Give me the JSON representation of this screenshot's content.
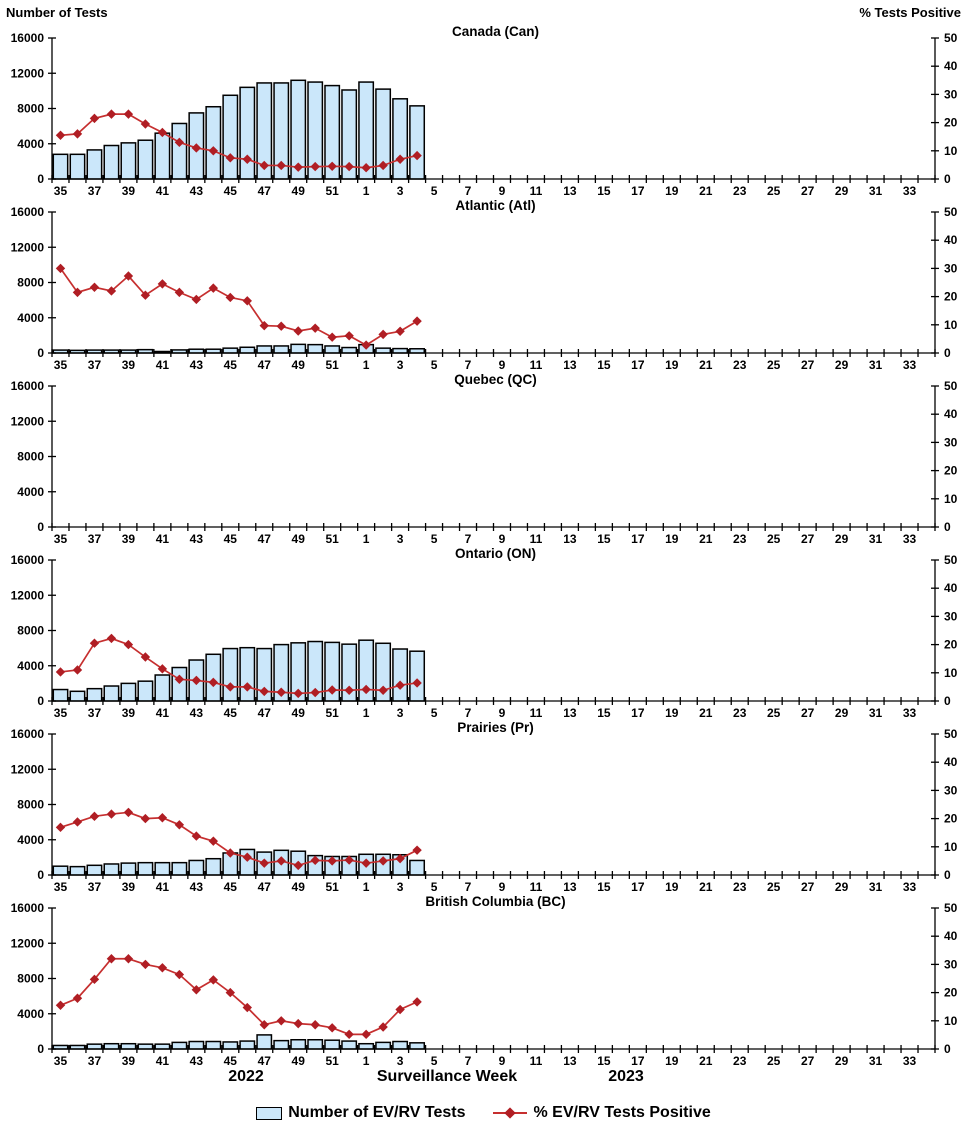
{
  "page": {
    "left_axis_title": "Number of Tests",
    "right_axis_title": "% Tests Positive",
    "x_axis": {
      "year_left": "2022",
      "label": "Surveillance Week",
      "year_right": "2023"
    },
    "legend": {
      "bar_label": "Number of EV/RV Tests",
      "line_label": "% EV/RV Tests Positive"
    }
  },
  "chart_data": {
    "type": "bar+line",
    "description": "Six stacked panels: EV/RV laboratory tests (bars, left axis) and percent positive (red diamond line, right axis) by surveillance week 2022-W35 to 2023-W34; data plotted through 2023-W04",
    "x_weeks": [
      "35",
      "36",
      "37",
      "38",
      "39",
      "40",
      "41",
      "42",
      "43",
      "44",
      "45",
      "46",
      "47",
      "48",
      "49",
      "50",
      "51",
      "52",
      "1",
      "2",
      "3",
      "4",
      "5",
      "6",
      "7",
      "8",
      "9",
      "10",
      "11",
      "12",
      "13",
      "14",
      "15",
      "16",
      "17",
      "18",
      "19",
      "20",
      "21",
      "22",
      "23",
      "24",
      "25",
      "26",
      "27",
      "28",
      "29",
      "30",
      "31",
      "32",
      "33",
      "34"
    ],
    "left_axis": {
      "title": "Number of Tests",
      "min": 0,
      "max": 16000,
      "step": 4000,
      "tick_labels": [
        "0",
        "4000",
        "8000",
        "12000",
        "16000"
      ]
    },
    "right_axis": {
      "title": "% Tests Positive",
      "min": 0,
      "max": 50,
      "step": 10,
      "tick_labels": [
        "0",
        "10",
        "20",
        "30",
        "40",
        "50"
      ]
    },
    "colors": {
      "bar_fill": "#cbe7fa",
      "bar_stroke": "#000000",
      "line": "#c62f2f",
      "marker": "#b01e24"
    },
    "panels": [
      {
        "id": "can",
        "title": "Canada (Can)",
        "bars": [
          2800,
          2800,
          3300,
          3800,
          4100,
          4400,
          5200,
          6300,
          7500,
          8200,
          9500,
          10400,
          10900,
          10900,
          11200,
          11000,
          10600,
          10100,
          11000,
          10200,
          9100,
          8300
        ],
        "pct_positive": [
          15.5,
          16,
          21.5,
          23,
          23,
          19.5,
          16.5,
          13,
          11,
          10,
          7.5,
          7,
          4.8,
          4.8,
          4.2,
          4.4,
          4.5,
          4.4,
          4,
          4.8,
          7,
          8.3
        ]
      },
      {
        "id": "atl",
        "title": "Atlantic (Atl)",
        "bars": [
          330,
          300,
          330,
          330,
          330,
          380,
          170,
          350,
          430,
          430,
          550,
          650,
          800,
          800,
          980,
          950,
          800,
          620,
          950,
          550,
          500,
          480
        ],
        "pct_positive": [
          30,
          21.5,
          23.3,
          22,
          27.3,
          20.5,
          24.5,
          21.5,
          19,
          23,
          19.7,
          18.5,
          9.7,
          9.5,
          7.8,
          8.8,
          5.6,
          6.1,
          2.8,
          6.6,
          7.7,
          11.3
        ]
      },
      {
        "id": "qc",
        "title": "Quebec (QC)",
        "bars": [],
        "pct_positive": []
      },
      {
        "id": "on",
        "title": "Ontario (ON)",
        "bars": [
          1300,
          1100,
          1400,
          1700,
          2000,
          2250,
          2950,
          3800,
          4650,
          5300,
          5950,
          6050,
          5950,
          6400,
          6600,
          6750,
          6650,
          6450,
          6900,
          6550,
          5900,
          5650
        ],
        "pct_positive": [
          10.3,
          11,
          20.5,
          22.2,
          20,
          15.6,
          11.4,
          7.7,
          7.3,
          6.6,
          5,
          5,
          3.4,
          3.1,
          2.7,
          3,
          3.9,
          3.8,
          4.1,
          3.8,
          5.6,
          6.4
        ]
      },
      {
        "id": "pr",
        "title": "Prairies (Pr)",
        "bars": [
          1000,
          950,
          1100,
          1250,
          1350,
          1400,
          1400,
          1400,
          1650,
          1850,
          2500,
          2900,
          2600,
          2800,
          2700,
          2200,
          2100,
          2100,
          2350,
          2350,
          2300,
          1650
        ],
        "pct_positive": [
          16.9,
          18.8,
          20.8,
          21.6,
          22.2,
          20,
          20.3,
          17.8,
          13.8,
          12,
          7.8,
          6.3,
          4.2,
          5,
          3.4,
          5.2,
          5,
          5.3,
          4.2,
          5,
          5.8,
          8.8
        ]
      },
      {
        "id": "bc",
        "title": "British Columbia (BC)",
        "bars": [
          400,
          400,
          550,
          600,
          600,
          550,
          550,
          750,
          850,
          850,
          800,
          900,
          1600,
          950,
          1050,
          1050,
          1000,
          900,
          600,
          750,
          850,
          700
        ],
        "pct_positive": [
          15.5,
          18,
          24.7,
          32,
          32,
          30,
          28.8,
          26.4,
          21,
          24.5,
          20,
          14.7,
          8.6,
          10,
          9,
          8.6,
          7.5,
          5.2,
          5.2,
          7.8,
          14,
          16.7
        ]
      }
    ]
  }
}
